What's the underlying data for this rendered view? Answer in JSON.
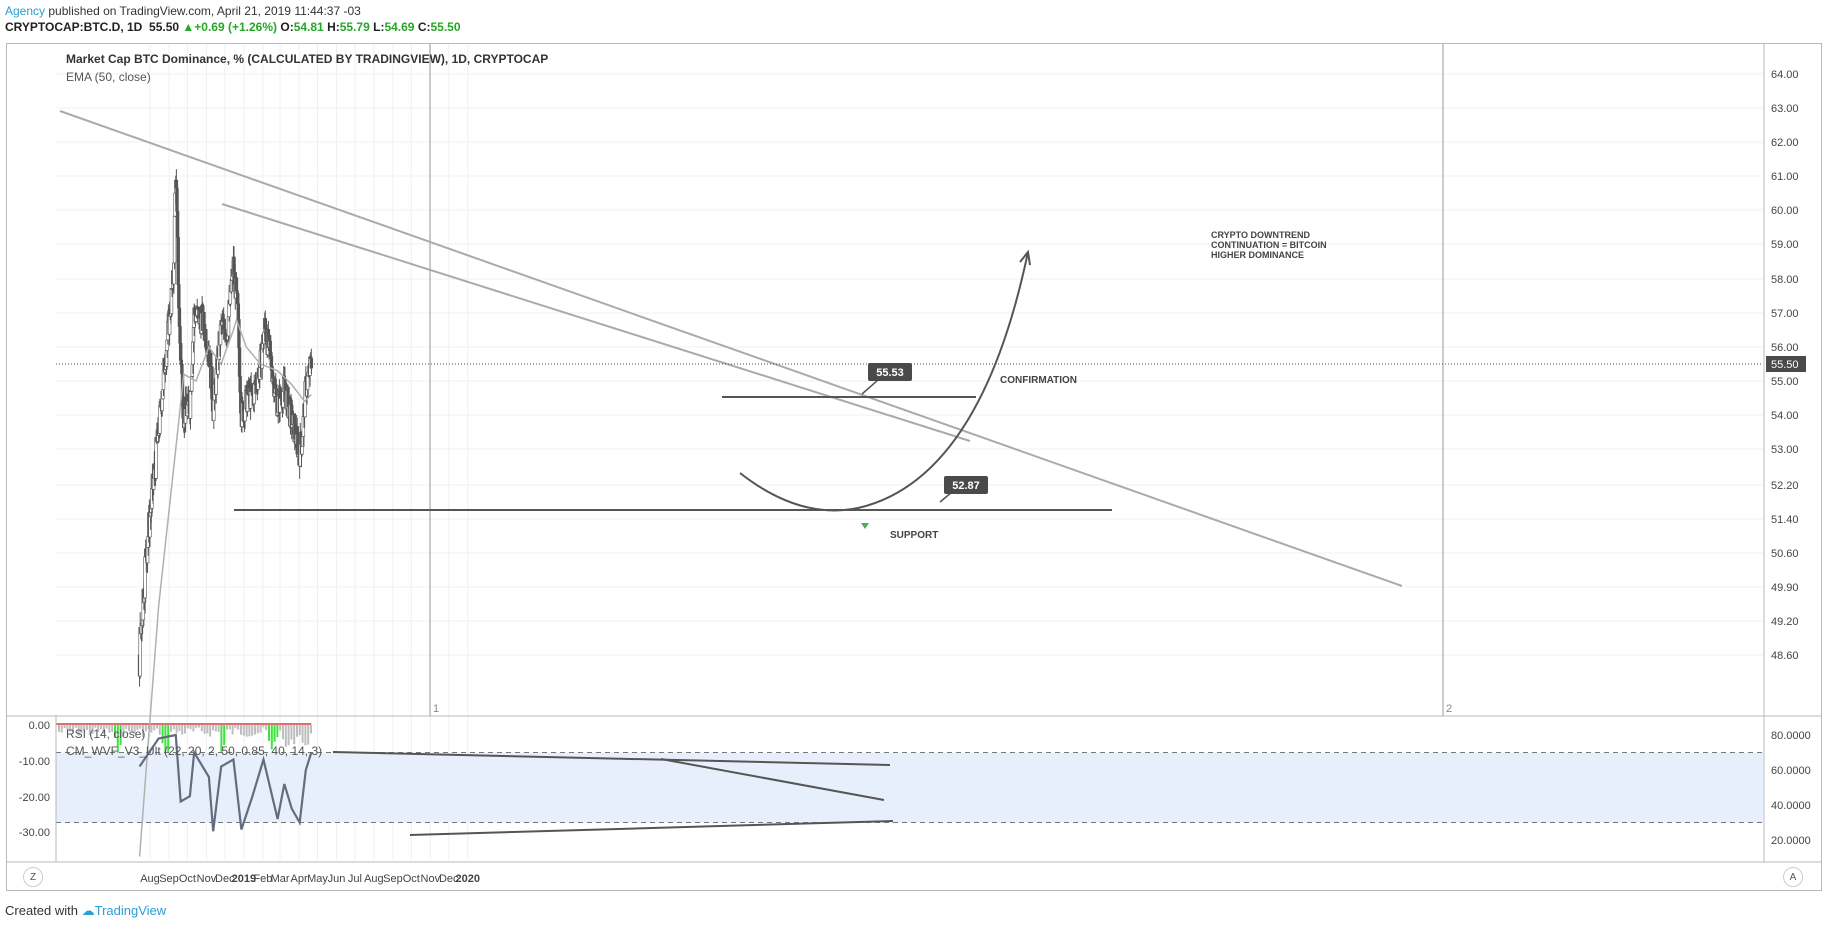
{
  "header": {
    "author": "Agency",
    "published_text": "published on TradingView.com, April 21, 2019 11:44:37 -03",
    "symbol": "CRYPTOCAP:BTC.D, 1D",
    "last": "55.50",
    "change": "+0.69 (+1.26%)",
    "o_label": "O:",
    "o_value": "54.81",
    "h_label": "H:",
    "h_value": "55.79",
    "l_label": "L:",
    "l_value": "54.69",
    "c_label": "C:",
    "c_value": "55.50"
  },
  "chart_title": "Market Cap BTC Dominance, % (CALCULATED BY TRADINGVIEW), 1D, CRYPTOCAP",
  "ema_label": "EMA (50, close)",
  "rsi_label": "RSI (14, close)",
  "cm_label": "CM_WVF_V3_Ult (22, 20, 2, 50, 0.85, 40, 14, 3)",
  "annotations": {
    "thesis": [
      "CRYPTO DOWNTREND",
      "CONTINUATION = BITCOIN",
      "HIGHER DOMINANCE"
    ],
    "confirmation": "CONFIRMATION",
    "support": "SUPPORT",
    "callout_high": "55.53",
    "callout_low": "52.87",
    "marker_1": "1",
    "marker_2": "2"
  },
  "corner_left": "Z",
  "corner_right": "A",
  "footer": {
    "created_with": "Created with",
    "brand": "TradingView"
  },
  "colors": {
    "candle": "#555555",
    "ema": "#b0b0b0",
    "trendline": "#aaaaaa",
    "support": "#555555",
    "rsi_band": "#e8effc",
    "rsi": "#646c80",
    "wvf_green": "#3de43d",
    "wvf_gray": "#bdbdbd",
    "wvf_red": "#e07070",
    "price_tag": "#4a4a4a"
  },
  "chart_data": [
    {
      "type": "candlestick",
      "title": "Market Cap BTC Dominance, % (CALCULATED BY TRADINGVIEW), 1D, CRYPTOCAP",
      "y_ticks": [
        64.0,
        63.0,
        62.0,
        61.0,
        60.0,
        59.0,
        58.0,
        57.0,
        56.0,
        55.0,
        54.0,
        53.0,
        52.2,
        51.4,
        50.6,
        49.9,
        49.2,
        48.6
      ],
      "y_tick_labels": [
        "64.00",
        "63.00",
        "62.00",
        "61.00",
        "60.00",
        "59.00",
        "58.00",
        "57.00",
        "56.00",
        "55.00",
        "54.00",
        "53.00",
        "52.20",
        "51.40",
        "50.60",
        "49.90",
        "49.20",
        "48.60"
      ],
      "x_ticks": [
        "Aug",
        "Sep",
        "Oct",
        "Nov",
        "Dec",
        "2019",
        "Jan_skip",
        "Feb",
        "Mar",
        "Apr",
        "May",
        "Jun",
        "Jul",
        "Aug",
        "Sep",
        "Oct",
        "Nov",
        "Dec",
        "2020"
      ],
      "x_tick_labels": [
        "Aug",
        "Sep",
        "Oct",
        "Nov",
        "Dec",
        "2019",
        "Feb",
        "Mar",
        "Apr",
        "May",
        "Jun",
        "Jul",
        "Aug",
        "Sep",
        "Oct",
        "Nov",
        "Dec",
        "2020"
      ],
      "last_price": 55.5,
      "last_price_label": "55.50",
      "key_points": [
        {
          "date": "2018-07-15",
          "close": 48.6
        },
        {
          "date": "2018-07-25",
          "close": 50.5
        },
        {
          "date": "2018-08-05",
          "close": 52.0
        },
        {
          "date": "2018-08-15",
          "close": 53.5
        },
        {
          "date": "2018-08-25",
          "close": 55.5
        },
        {
          "date": "2018-09-08",
          "close": 58.0
        },
        {
          "date": "2018-09-12",
          "close": 61.2
        },
        {
          "date": "2018-09-18",
          "close": 56.5
        },
        {
          "date": "2018-09-25",
          "close": 54.0
        },
        {
          "date": "2018-10-05",
          "close": 54.3
        },
        {
          "date": "2018-10-12",
          "close": 57.0
        },
        {
          "date": "2018-10-25",
          "close": 56.8
        },
        {
          "date": "2018-11-05",
          "close": 56.0
        },
        {
          "date": "2018-11-12",
          "close": 54.2
        },
        {
          "date": "2018-11-25",
          "close": 56.6
        },
        {
          "date": "2018-12-05",
          "close": 56.5
        },
        {
          "date": "2018-12-15",
          "close": 58.4
        },
        {
          "date": "2018-12-22",
          "close": 57.0
        },
        {
          "date": "2018-12-28",
          "close": 54.0
        },
        {
          "date": "2019-01-08",
          "close": 54.6
        },
        {
          "date": "2019-01-15",
          "close": 54.5
        },
        {
          "date": "2019-01-28",
          "close": 55.5
        },
        {
          "date": "2019-02-04",
          "close": 56.6
        },
        {
          "date": "2019-02-12",
          "close": 55.8
        },
        {
          "date": "2019-02-25",
          "close": 54.3
        },
        {
          "date": "2019-03-08",
          "close": 54.8
        },
        {
          "date": "2019-03-18",
          "close": 54.0
        },
        {
          "date": "2019-04-01",
          "close": 53.0
        },
        {
          "date": "2019-04-06",
          "close": 53.3
        },
        {
          "date": "2019-04-12",
          "close": 54.8
        },
        {
          "date": "2019-04-21",
          "close": 55.5
        }
      ],
      "ema_50": [
        {
          "date": "2018-07-15",
          "value": 45.0
        },
        {
          "date": "2018-08-15",
          "value": 49.5
        },
        {
          "date": "2018-09-15",
          "value": 53.5
        },
        {
          "date": "2018-09-25",
          "value": 55.2
        },
        {
          "date": "2018-10-15",
          "value": 55.0
        },
        {
          "date": "2018-11-05",
          "value": 56.0
        },
        {
          "date": "2018-11-25",
          "value": 55.5
        },
        {
          "date": "2018-12-15",
          "value": 56.5
        },
        {
          "date": "2018-12-20",
          "value": 56.8
        },
        {
          "date": "2019-01-05",
          "value": 56.0
        },
        {
          "date": "2019-01-28",
          "value": 55.5
        },
        {
          "date": "2019-02-25",
          "value": 55.3
        },
        {
          "date": "2019-03-20",
          "value": 54.9
        },
        {
          "date": "2019-04-10",
          "value": 54.4
        },
        {
          "date": "2019-04-21",
          "value": 54.6
        }
      ]
    },
    {
      "type": "line",
      "title": "RSI (14, close)",
      "y_ticks": [
        80.0,
        60.0,
        40.0,
        20.0
      ],
      "y_tick_labels": [
        "80.0000",
        "60.0000",
        "40.0000",
        "20.0000"
      ],
      "left_ticks": [
        0.0,
        -10.0,
        -20.0,
        -30.0
      ],
      "left_tick_labels": [
        "0.00",
        "-10.00",
        "-20.00",
        "-30.00"
      ],
      "band": [
        30,
        70
      ],
      "values": [
        {
          "date": "2018-07-15",
          "value": 62
        },
        {
          "date": "2018-08-15",
          "value": 78
        },
        {
          "date": "2018-09-12",
          "value": 80
        },
        {
          "date": "2018-09-20",
          "value": 42
        },
        {
          "date": "2018-10-05",
          "value": 45
        },
        {
          "date": "2018-10-12",
          "value": 70
        },
        {
          "date": "2018-11-05",
          "value": 56
        },
        {
          "date": "2018-11-12",
          "value": 25
        },
        {
          "date": "2018-11-25",
          "value": 62
        },
        {
          "date": "2018-12-15",
          "value": 66
        },
        {
          "date": "2018-12-28",
          "value": 26
        },
        {
          "date": "2019-01-15",
          "value": 45
        },
        {
          "date": "2019-02-02",
          "value": 66
        },
        {
          "date": "2019-02-25",
          "value": 32
        },
        {
          "date": "2019-03-08",
          "value": 52
        },
        {
          "date": "2019-03-20",
          "value": 38
        },
        {
          "date": "2019-04-02",
          "value": 30
        },
        {
          "date": "2019-04-12",
          "value": 60
        },
        {
          "date": "2019-04-21",
          "value": 70
        }
      ]
    }
  ]
}
